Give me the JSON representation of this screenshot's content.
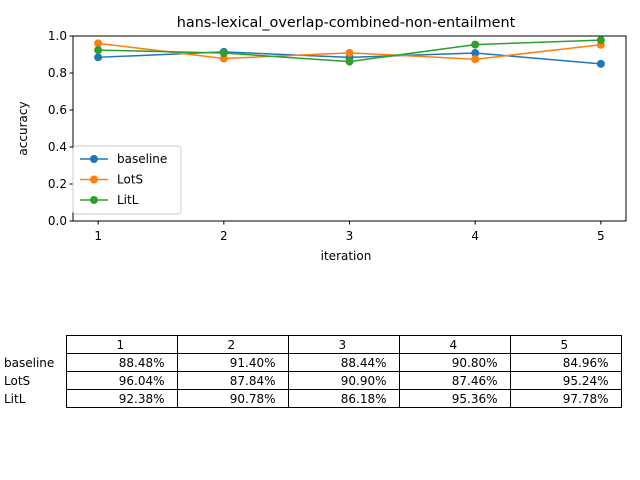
{
  "chart_data": {
    "type": "line",
    "title": "hans-lexical_overlap-combined-non-entailment",
    "xlabel": "iteration",
    "ylabel": "accuracy",
    "x": [
      1,
      2,
      3,
      4,
      5
    ],
    "xlim": [
      0.8,
      5.2
    ],
    "ylim": [
      0,
      1.0
    ],
    "yticks": [
      0.0,
      0.2,
      0.4,
      0.6,
      0.8,
      1.0
    ],
    "ytick_labels": [
      "0.0",
      "0.2",
      "0.4",
      "0.6",
      "0.8",
      "1.0"
    ],
    "xtick_labels": [
      "1",
      "2",
      "3",
      "4",
      "5"
    ],
    "grid": false,
    "legend_position": "lower-left",
    "series": [
      {
        "name": "baseline",
        "color": "#1f77b4",
        "values": [
          0.8848,
          0.914,
          0.8844,
          0.908,
          0.8496
        ]
      },
      {
        "name": "LotS",
        "color": "#ff7f0e",
        "values": [
          0.9604,
          0.8784,
          0.909,
          0.8746,
          0.9524
        ]
      },
      {
        "name": "LitL",
        "color": "#2ca02c",
        "values": [
          0.9238,
          0.9078,
          0.8618,
          0.9536,
          0.9778
        ]
      }
    ]
  },
  "table": {
    "columns": [
      "1",
      "2",
      "3",
      "4",
      "5"
    ],
    "rows": [
      {
        "label": "baseline",
        "cells": [
          "88.48%",
          "91.40%",
          "88.44%",
          "90.80%",
          "84.96%"
        ]
      },
      {
        "label": "LotS",
        "cells": [
          "96.04%",
          "87.84%",
          "90.90%",
          "87.46%",
          "95.24%"
        ]
      },
      {
        "label": "LitL",
        "cells": [
          "92.38%",
          "90.78%",
          "86.18%",
          "95.36%",
          "97.78%"
        ]
      }
    ]
  }
}
